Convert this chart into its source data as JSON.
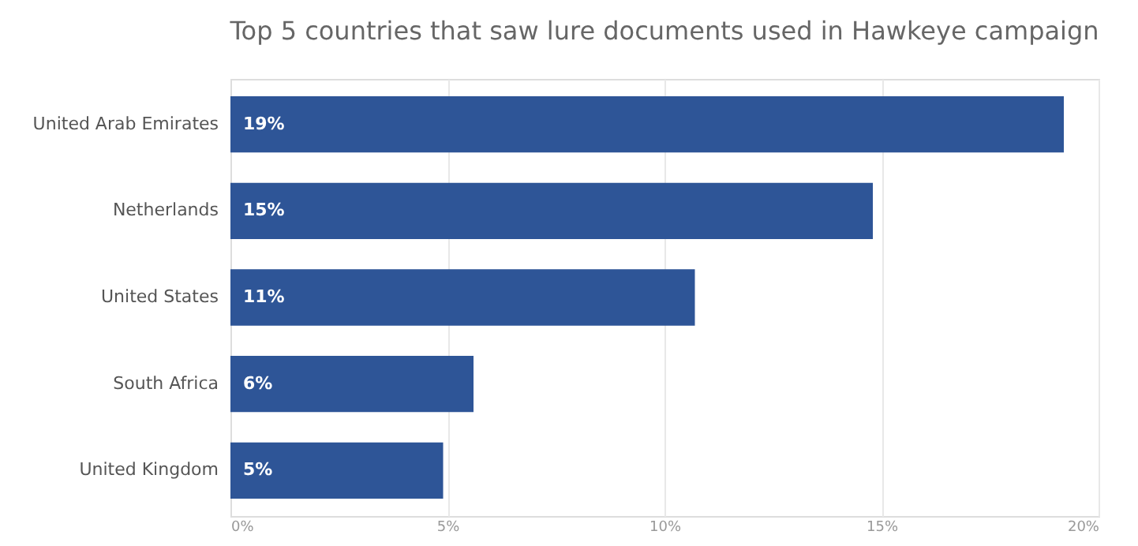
{
  "chart_data": {
    "type": "bar",
    "orientation": "horizontal",
    "title": "Top 5 countries that saw lure documents used in Hawkeye campaign",
    "categories": [
      "United Arab Emirates",
      "Netherlands",
      "United States",
      "South Africa",
      "United Kingdom"
    ],
    "values": [
      19.2,
      14.8,
      10.7,
      5.6,
      4.9
    ],
    "value_labels": [
      "19%",
      "15%",
      "11%",
      "6%",
      "5%"
    ],
    "color": "#2e5597",
    "xlim": [
      0,
      20
    ],
    "xticks": [
      {
        "value": 0,
        "label": "0%"
      },
      {
        "value": 5,
        "label": "5%"
      },
      {
        "value": 10,
        "label": "10%"
      },
      {
        "value": 15,
        "label": "15%"
      },
      {
        "value": 20,
        "label": "20%"
      }
    ],
    "grid": "x"
  }
}
